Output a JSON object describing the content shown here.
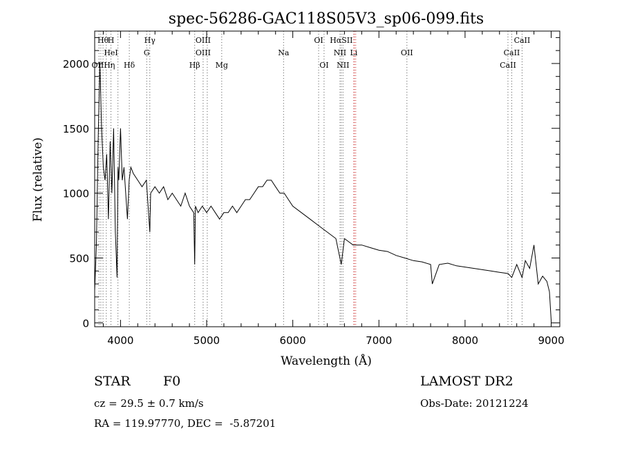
{
  "chart_data": {
    "type": "line",
    "title": "spec-56286-GAC118S05V3_sp06-099.fits",
    "xlabel": "Wavelength (Å)",
    "ylabel": "Flux (relative)",
    "xlim": [
      3700,
      9100
    ],
    "ylim": [
      -30,
      2250
    ],
    "x_ticks": [
      4000,
      5000,
      6000,
      7000,
      8000,
      9000
    ],
    "x_tick_labels": [
      "4000",
      "5000",
      "6000",
      "7000",
      "8000",
      "9000"
    ],
    "y_ticks": [
      0,
      500,
      1000,
      1500,
      2000
    ],
    "y_tick_labels": [
      "0",
      "500",
      "1000",
      "1500",
      "2000"
    ],
    "grid": false,
    "line_color": "#000000",
    "line_marker_color": "#555555",
    "line_marker_red": "#cc3333",
    "series": [
      {
        "x": [
          3700,
          3720,
          3740,
          3760,
          3780,
          3800,
          3820,
          3840,
          3860,
          3880,
          3900,
          3920,
          3940,
          3960,
          3970,
          3980,
          4000,
          4020,
          4040,
          4060,
          4080,
          4100,
          4120,
          4150,
          4200,
          4250,
          4300,
          4340,
          4350,
          4400,
          4450,
          4500,
          4550,
          4600,
          4650,
          4700,
          4750,
          4800,
          4850,
          4861,
          4870,
          4900,
          4950,
          5000,
          5050,
          5100,
          5150,
          5200,
          5250,
          5300,
          5350,
          5400,
          5450,
          5500,
          5550,
          5600,
          5650,
          5700,
          5750,
          5800,
          5850,
          5900,
          5950,
          6000,
          6100,
          6200,
          6300,
          6400,
          6500,
          6563,
          6600,
          6700,
          6800,
          6900,
          7000,
          7100,
          7200,
          7300,
          7400,
          7500,
          7600,
          7620,
          7700,
          7800,
          7900,
          8000,
          8100,
          8200,
          8300,
          8400,
          8500,
          8542,
          8600,
          8662,
          8700,
          8750,
          8800,
          8850,
          8900,
          8950,
          8980,
          9000
        ],
        "y": [
          250,
          600,
          1400,
          2000,
          1500,
          1200,
          1100,
          1300,
          800,
          1400,
          1000,
          1500,
          700,
          350,
          1200,
          1100,
          1500,
          1100,
          1200,
          1000,
          800,
          1100,
          1200,
          1150,
          1100,
          1050,
          1100,
          700,
          1000,
          1050,
          1000,
          1050,
          950,
          1000,
          950,
          900,
          1000,
          900,
          850,
          450,
          900,
          850,
          900,
          850,
          900,
          850,
          800,
          850,
          850,
          900,
          850,
          900,
          950,
          950,
          1000,
          1050,
          1050,
          1100,
          1100,
          1050,
          1000,
          1000,
          950,
          900,
          850,
          800,
          750,
          700,
          650,
          450,
          650,
          600,
          600,
          580,
          560,
          550,
          520,
          500,
          480,
          470,
          450,
          300,
          450,
          460,
          440,
          430,
          420,
          410,
          400,
          390,
          380,
          350,
          450,
          350,
          480,
          420,
          600,
          300,
          360,
          320,
          240,
          20
        ]
      }
    ],
    "line_labels": [
      {
        "text": "Hθ",
        "row": 0,
        "x": 3797
      },
      {
        "text": "H",
        "row": 0,
        "x": 3889
      },
      {
        "text": "Hγ",
        "row": 0,
        "x": 4340
      },
      {
        "text": "OIII",
        "row": 0,
        "x": 4959
      },
      {
        "text": "OI",
        "row": 0,
        "x": 6300
      },
      {
        "text": "HαSII",
        "row": 0,
        "x": 6563
      },
      {
        "text": "CaII",
        "row": 0,
        "x": 8662
      },
      {
        "text": "HeI",
        "row": 1,
        "x": 3889
      },
      {
        "text": "G",
        "row": 1,
        "x": 4304
      },
      {
        "text": "OIII",
        "row": 1,
        "x": 4959
      },
      {
        "text": "Na",
        "row": 1,
        "x": 5893
      },
      {
        "text": "NII",
        "row": 1,
        "x": 6548
      },
      {
        "text": "Li",
        "row": 1,
        "x": 6708
      },
      {
        "text": "OII",
        "row": 1,
        "x": 7325
      },
      {
        "text": "CaII",
        "row": 1,
        "x": 8542
      },
      {
        "text": "OIIHη",
        "row": 2,
        "x": 3800
      },
      {
        "text": "Hδ",
        "row": 2,
        "x": 4102
      },
      {
        "text": "Hβ",
        "row": 2,
        "x": 4861
      },
      {
        "text": "Mg",
        "row": 2,
        "x": 5175
      },
      {
        "text": "OI",
        "row": 2,
        "x": 6363
      },
      {
        "text": "NII",
        "row": 2,
        "x": 6583
      },
      {
        "text": "CaII",
        "row": 2,
        "x": 8498
      }
    ],
    "marker_lines": [
      3750,
      3771,
      3797,
      3835,
      3889,
      3970,
      4102,
      4304,
      4340,
      4861,
      4959,
      5007,
      5175,
      5893,
      6300,
      6363,
      6548,
      6563,
      6583,
      6708,
      6716,
      6731,
      7325,
      8498,
      8542,
      8662
    ]
  },
  "info": {
    "class_label": "STAR",
    "subclass_label": "F0",
    "survey": "LAMOST DR2",
    "cz_text": "cz = 29.5 ± 0.7 km/s",
    "obs_date": "Obs-Date: 20121224",
    "radec_text": "RA = 119.97770, DEC =  -5.87201"
  }
}
